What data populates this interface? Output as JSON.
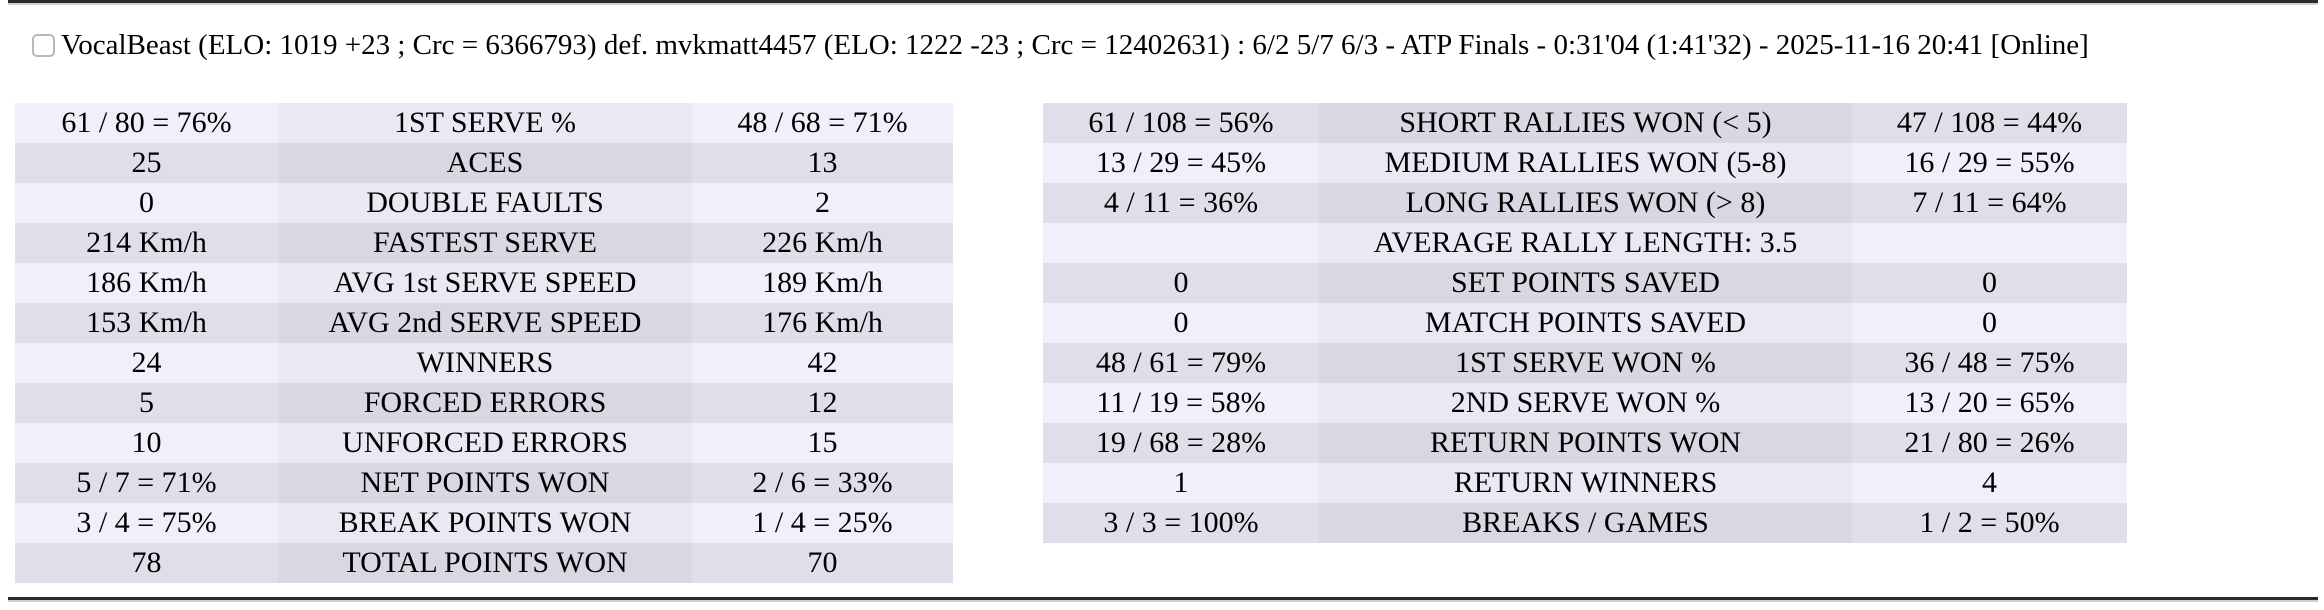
{
  "colors": {
    "row-light-value": "#f0f0fa",
    "row-light-label": "#e9e9f3",
    "row-dark-value": "#dfdfe9",
    "row-dark-label": "#d8d8e2",
    "divider": "#2b2b2b"
  },
  "header": {
    "checkbox_checked": false,
    "match_summary": "VocalBeast (ELO: 1019 +23 ; Crc = 6366793) def. mvkmatt4457 (ELO: 1222 -23 ; Crc = 12402631) : 6/2 5/7 6/3 - ATP Finals - 0:31'04 (1:41'32) - 2025-11-16 20:41 [Online]"
  },
  "stats_left": {
    "first_row_shade": "light",
    "rows": [
      {
        "p1": "61 / 80 = 76%",
        "label": "1ST SERVE %",
        "p2": "48 / 68 = 71%"
      },
      {
        "p1": "25",
        "label": "ACES",
        "p2": "13"
      },
      {
        "p1": "0",
        "label": "DOUBLE FAULTS",
        "p2": "2"
      },
      {
        "p1": "214 Km/h",
        "label": "FASTEST SERVE",
        "p2": "226 Km/h"
      },
      {
        "p1": "186 Km/h",
        "label": "AVG 1st SERVE SPEED",
        "p2": "189 Km/h"
      },
      {
        "p1": "153 Km/h",
        "label": "AVG 2nd SERVE SPEED",
        "p2": "176 Km/h"
      },
      {
        "p1": "24",
        "label": "WINNERS",
        "p2": "42"
      },
      {
        "p1": "5",
        "label": "FORCED ERRORS",
        "p2": "12"
      },
      {
        "p1": "10",
        "label": "UNFORCED ERRORS",
        "p2": "15"
      },
      {
        "p1": "5 / 7 = 71%",
        "label": "NET POINTS WON",
        "p2": "2 / 6 = 33%"
      },
      {
        "p1": "3 / 4 = 75%",
        "label": "BREAK POINTS WON",
        "p2": "1 / 4 = 25%"
      },
      {
        "p1": "78",
        "label": "TOTAL POINTS WON",
        "p2": "70"
      }
    ]
  },
  "stats_right": {
    "first_row_shade": "dark",
    "rows": [
      {
        "p1": "61 / 108 = 56%",
        "label": "SHORT RALLIES WON (< 5)",
        "p2": "47 / 108 = 44%"
      },
      {
        "p1": "13 / 29 = 45%",
        "label": "MEDIUM RALLIES WON (5-8)",
        "p2": "16 / 29 = 55%"
      },
      {
        "p1": "4 / 11 = 36%",
        "label": "LONG RALLIES WON (> 8)",
        "p2": "7 / 11 = 64%"
      },
      {
        "p1": "",
        "label": "AVERAGE RALLY LENGTH: 3.5",
        "p2": ""
      },
      {
        "p1": "0",
        "label": "SET POINTS SAVED",
        "p2": "0"
      },
      {
        "p1": "0",
        "label": "MATCH POINTS SAVED",
        "p2": "0"
      },
      {
        "p1": "48 / 61 = 79%",
        "label": "1ST SERVE WON %",
        "p2": "36 / 48 = 75%"
      },
      {
        "p1": "11 / 19 = 58%",
        "label": "2ND SERVE WON %",
        "p2": "13 / 20 = 65%"
      },
      {
        "p1": "19 / 68 = 28%",
        "label": "RETURN POINTS WON",
        "p2": "21 / 80 = 26%"
      },
      {
        "p1": "1",
        "label": "RETURN WINNERS",
        "p2": "4"
      },
      {
        "p1": "3 / 3 = 100%",
        "label": "BREAKS / GAMES",
        "p2": "1 / 2 = 50%"
      }
    ]
  }
}
